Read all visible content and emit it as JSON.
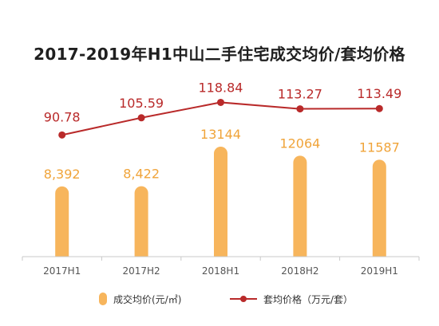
{
  "chart_data": {
    "type": "bar",
    "title": "2017-2019年H1中山二手住宅成交均价/套均价格",
    "categories": [
      "2017H1",
      "2017H2",
      "2018H1",
      "2018H2",
      "2019H1"
    ],
    "series": [
      {
        "name": "成交均价(元/㎡)",
        "type": "bar",
        "values": [
          8392,
          8422,
          13144,
          12064,
          11587
        ],
        "labels": [
          "8,392",
          "8,422",
          "13144",
          "12064",
          "11587"
        ],
        "color": "#f7b55c",
        "label_color": "#f0a43a"
      },
      {
        "name": "套均价格（万元/套）",
        "type": "line",
        "values": [
          90.78,
          105.59,
          118.84,
          113.27,
          113.49
        ],
        "labels": [
          "90.78",
          "105.59",
          "118.84",
          "113.27",
          "113.49"
        ],
        "color": "#b92a2a",
        "label_color": "#b92a2a"
      }
    ],
    "legend": {
      "position": "bottom",
      "items": [
        "成交均价(元/㎡)",
        "套均价格（万元/套）"
      ]
    },
    "grid": false,
    "axis_color": "#c9c9c9"
  }
}
